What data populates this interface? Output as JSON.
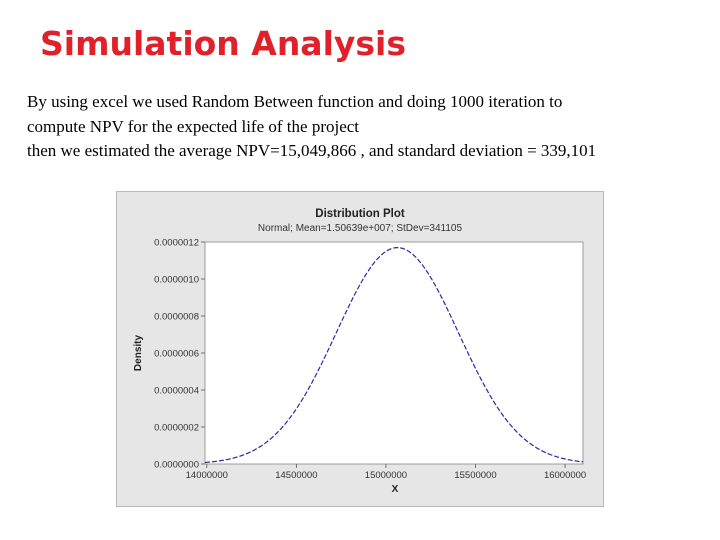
{
  "slide": {
    "title": "Simulation Analysis",
    "paragraph_lines": [
      "By using excel we used Random Between function  and doing 1000 iteration to",
      "compute NPV for the expected life of the project",
      "then we estimated the average NPV=15,049,866 , and standard deviation = 339,101"
    ],
    "title_color": "#e0202a"
  },
  "chart_data": {
    "type": "line",
    "title": "Distribution Plot",
    "subtitle": "Normal; Mean=1.50639e+007; StDev=341105",
    "xlabel": "X",
    "ylabel": "Density",
    "distribution": {
      "family": "normal",
      "mean": 15063900,
      "stdev": 341105
    },
    "xlim": [
      13990000,
      16100000
    ],
    "ylim": [
      0,
      1.2e-06
    ],
    "x_ticks": [
      {
        "value": 14000000,
        "label": "14000000"
      },
      {
        "value": 14500000,
        "label": "14500000"
      },
      {
        "value": 15000000,
        "label": "15000000"
      },
      {
        "value": 15500000,
        "label": "15500000"
      },
      {
        "value": 16000000,
        "label": "16000000"
      }
    ],
    "y_ticks": [
      {
        "value": 0,
        "label": "0.0000000"
      },
      {
        "value": 2e-07,
        "label": "0.0000002"
      },
      {
        "value": 4e-07,
        "label": "0.0000004"
      },
      {
        "value": 6e-07,
        "label": "0.0000006"
      },
      {
        "value": 8e-07,
        "label": "0.0000008"
      },
      {
        "value": 1e-06,
        "label": "0.0000010"
      },
      {
        "value": 1.2e-06,
        "label": "0.0000012"
      }
    ],
    "line_color": "#2a2aa8",
    "plot_background": "#ffffff",
    "frame_background": "#e6e6e6",
    "grid": false,
    "legend": "none"
  }
}
